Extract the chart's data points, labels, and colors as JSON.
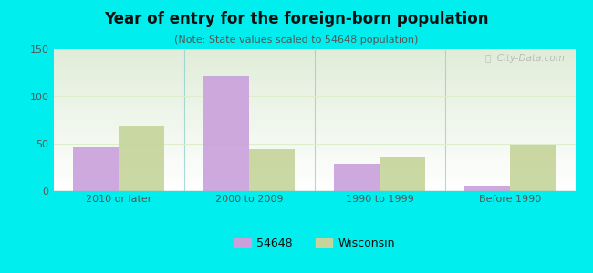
{
  "title": "Year of entry for the foreign-born population",
  "subtitle": "(Note: State values scaled to 54648 population)",
  "categories": [
    "2010 or later",
    "2000 to 2009",
    "1990 to 1999",
    "Before 1990"
  ],
  "values_54648": [
    46,
    121,
    29,
    6
  ],
  "values_wisconsin": [
    68,
    44,
    36,
    49
  ],
  "bar_color_54648": "#c9a0dc",
  "bar_color_wisconsin": "#c5d49a",
  "background_outer": "#00eeee",
  "ylim": [
    0,
    150
  ],
  "yticks": [
    0,
    50,
    100,
    150
  ],
  "bar_width": 0.35,
  "legend_label_54648": "54648",
  "legend_label_wisconsin": "Wisconsin",
  "title_fontsize": 12,
  "subtitle_fontsize": 8,
  "tick_fontsize": 8,
  "legend_fontsize": 9,
  "title_color": "#111111",
  "subtitle_color": "#555555",
  "tick_color": "#555555",
  "divider_color": "#aaddaa",
  "grid_color": "#ddeecc"
}
